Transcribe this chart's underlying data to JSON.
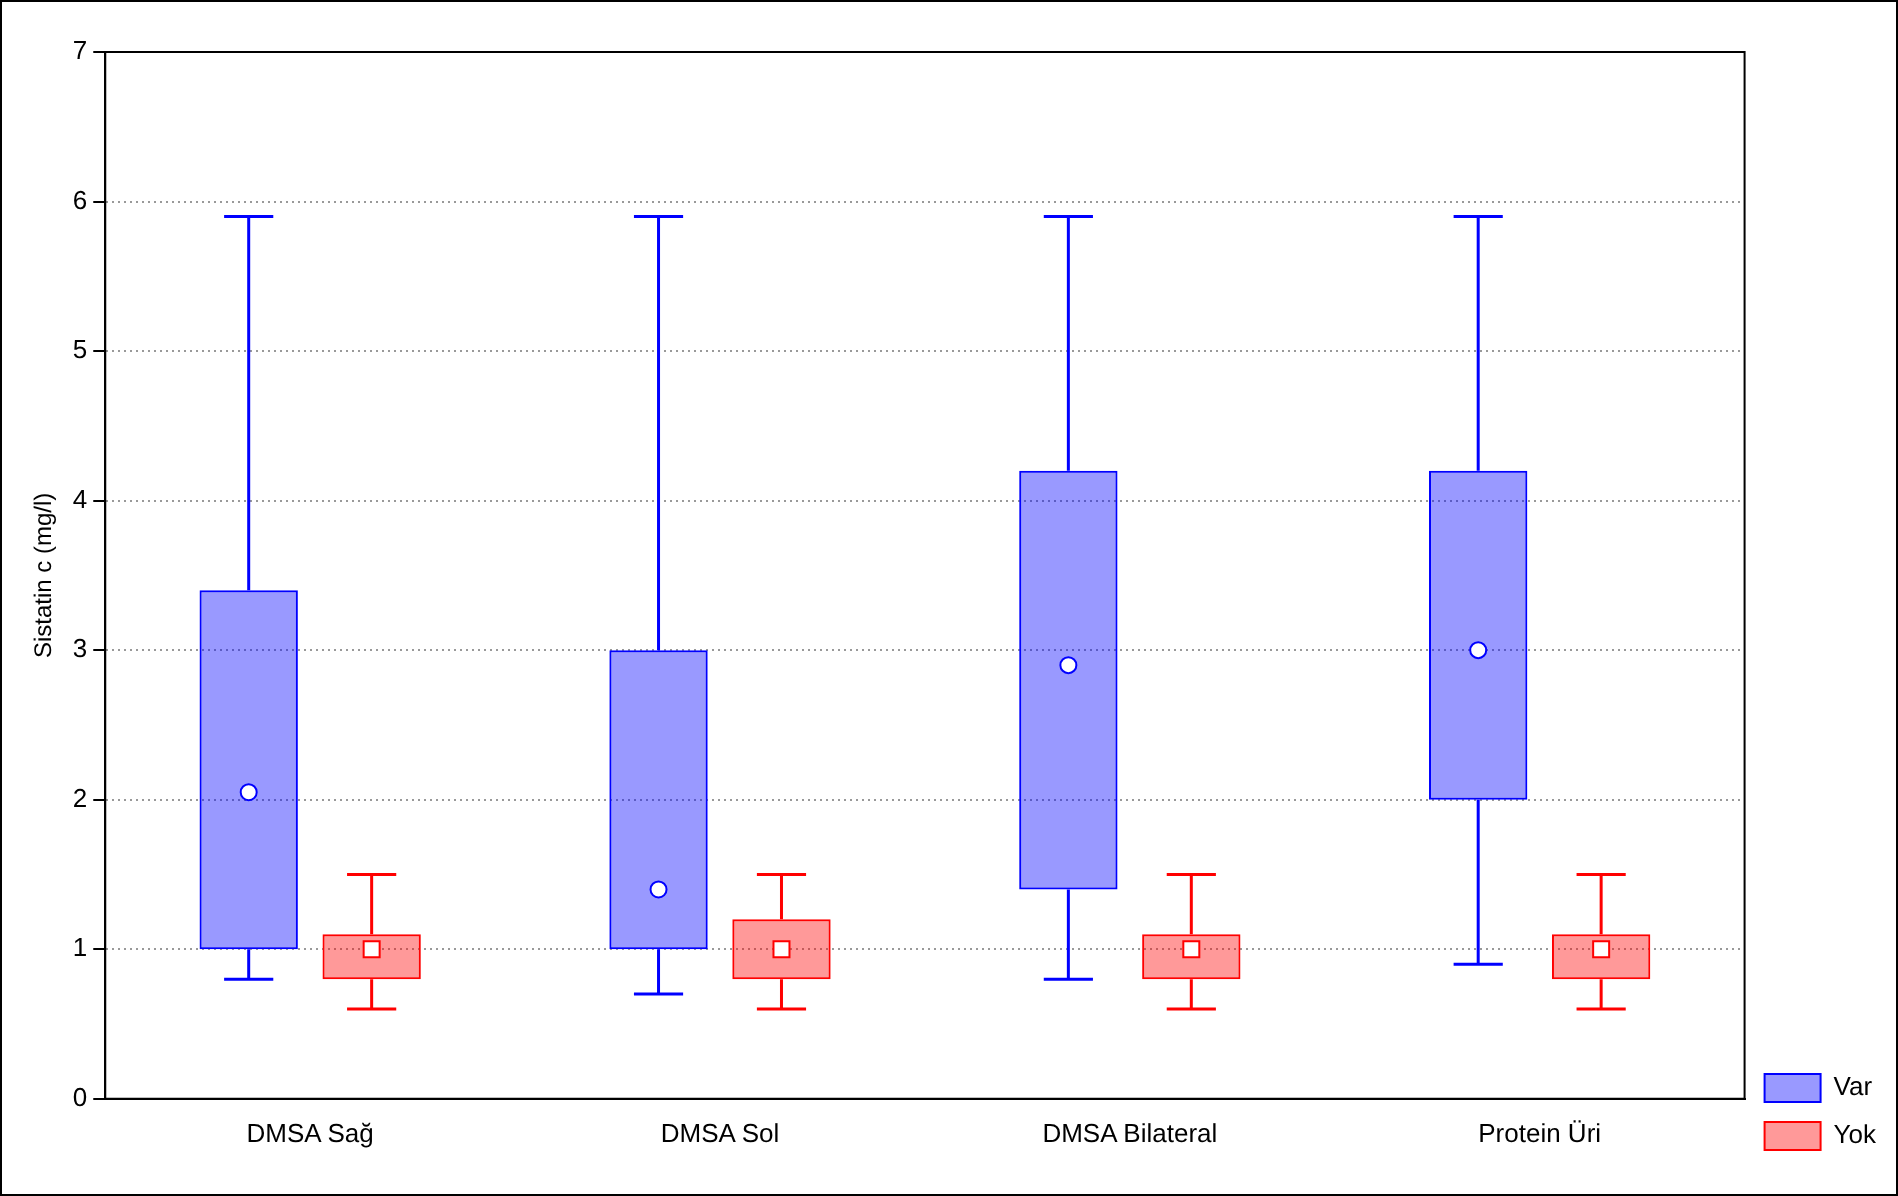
{
  "chart_data": {
    "type": "box",
    "ylabel": "Sistatin c (mg/l)",
    "categories": [
      "DMSA Sağ",
      "DMSA Sol",
      "DMSA Bilateral",
      "Protein Üri"
    ],
    "ylim": [
      0,
      7
    ],
    "yticks": [
      0,
      1,
      2,
      3,
      4,
      5,
      6,
      7
    ],
    "grid": "y",
    "legend": "bottom right",
    "series": [
      {
        "name": "Var",
        "color": "#0000ff",
        "marker": "circle",
        "boxes": [
          {
            "low": 0.8,
            "q1": 1.0,
            "median": 2.05,
            "q3": 3.4,
            "high": 5.9
          },
          {
            "low": 0.7,
            "q1": 1.0,
            "median": 1.4,
            "q3": 3.0,
            "high": 5.9
          },
          {
            "low": 0.8,
            "q1": 1.4,
            "median": 2.9,
            "q3": 4.2,
            "high": 5.9
          },
          {
            "low": 0.9,
            "q1": 2.0,
            "median": 3.0,
            "q3": 4.2,
            "high": 5.9
          }
        ]
      },
      {
        "name": "Yok",
        "color": "#ff0000",
        "marker": "square",
        "boxes": [
          {
            "low": 0.6,
            "q1": 0.8,
            "median": 1.0,
            "q3": 1.1,
            "high": 1.5
          },
          {
            "low": 0.6,
            "q1": 0.8,
            "median": 1.0,
            "q3": 1.2,
            "high": 1.5
          },
          {
            "low": 0.6,
            "q1": 0.8,
            "median": 1.0,
            "q3": 1.1,
            "high": 1.5
          },
          {
            "low": 0.6,
            "q1": 0.8,
            "median": 1.0,
            "q3": 1.1,
            "high": 1.5
          }
        ]
      }
    ]
  }
}
